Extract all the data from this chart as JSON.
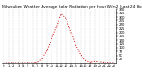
{
  "title": "Milwaukee Weather Average Solar Radiation per Hour W/m2 (Last 24 Hours)",
  "hours": [
    0,
    1,
    2,
    3,
    4,
    5,
    6,
    7,
    8,
    9,
    10,
    11,
    12,
    13,
    14,
    15,
    16,
    17,
    18,
    19,
    20,
    21,
    22,
    23
  ],
  "values": [
    2,
    2,
    2,
    2,
    2,
    2,
    2,
    5,
    30,
    80,
    160,
    240,
    320,
    290,
    200,
    120,
    55,
    18,
    5,
    12,
    8,
    5,
    3,
    2
  ],
  "line_color": "#cc0000",
  "bg_color": "#ffffff",
  "grid_color": "#bbbbbb",
  "title_color": "#000000",
  "title_fontsize": 3.2,
  "tick_fontsize": 2.8,
  "ylim": [
    0,
    350
  ],
  "yticks": [
    25,
    50,
    75,
    100,
    125,
    150,
    175,
    200,
    225,
    250,
    275,
    300,
    325,
    350
  ],
  "xtick_labels": [
    "0",
    "1",
    "2",
    "3",
    "4",
    "5",
    "6",
    "7",
    "8",
    "9",
    "10",
    "11",
    "12",
    "13",
    "14",
    "15",
    "16",
    "17",
    "18",
    "19",
    "20",
    "21",
    "22",
    "23"
  ],
  "figwidth": 1.6,
  "figheight": 0.87,
  "dpi": 100
}
